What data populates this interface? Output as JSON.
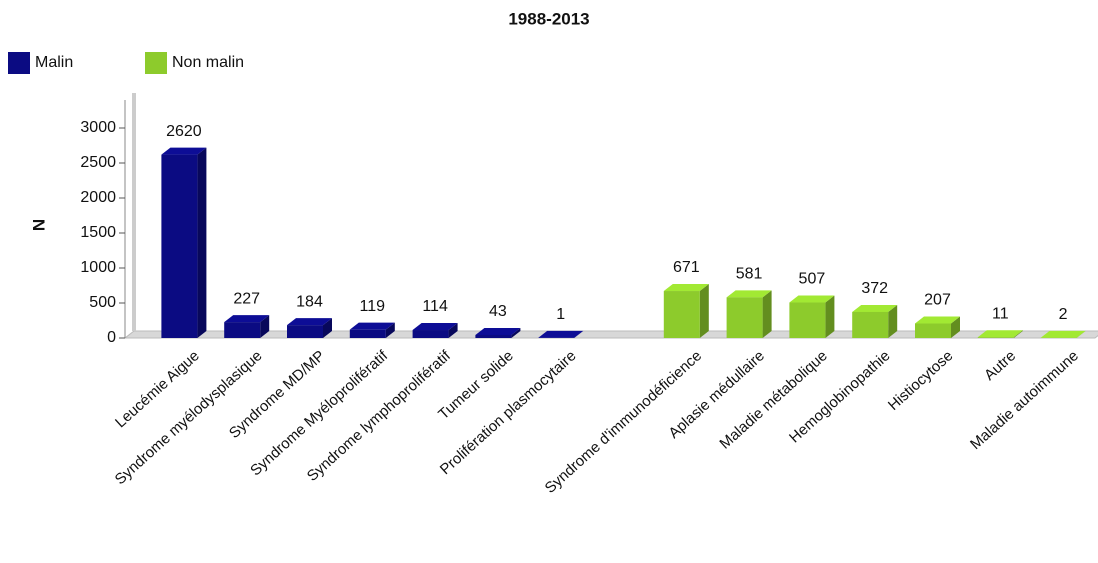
{
  "chart_data": {
    "type": "bar3d",
    "title": "1988-2013",
    "y_label": "N",
    "categories": [
      "Leucémie Aigue",
      "Syndrome myélodysplasique",
      "Syndrome MD/MP",
      "Syndrome Myéloprolifératif",
      "Syndrome lymphoprolifératif",
      "Tumeur solide",
      "Prolifération plasmocytaire",
      null,
      "Syndrome d'immunodéficience",
      "Aplasie médullaire",
      "Maladie métabolique",
      "Hemoglobinopathie",
      "Histiocytose",
      "Autre",
      "Maladie autoimmune"
    ],
    "series": [
      {
        "name": "Malin",
        "color": "#0b0b82",
        "values": [
          2620,
          227,
          184,
          119,
          114,
          43,
          1,
          null,
          null,
          null,
          null,
          null,
          null,
          null,
          null
        ]
      },
      {
        "name": "Non malin",
        "color": "#8dcb2c",
        "values": [
          null,
          null,
          null,
          null,
          null,
          null,
          null,
          null,
          671,
          581,
          507,
          372,
          207,
          11,
          2
        ]
      }
    ],
    "ylim": [
      0,
      3400
    ],
    "yticks": [
      0,
      500,
      1000,
      1500,
      2000,
      2500,
      3000
    ]
  }
}
